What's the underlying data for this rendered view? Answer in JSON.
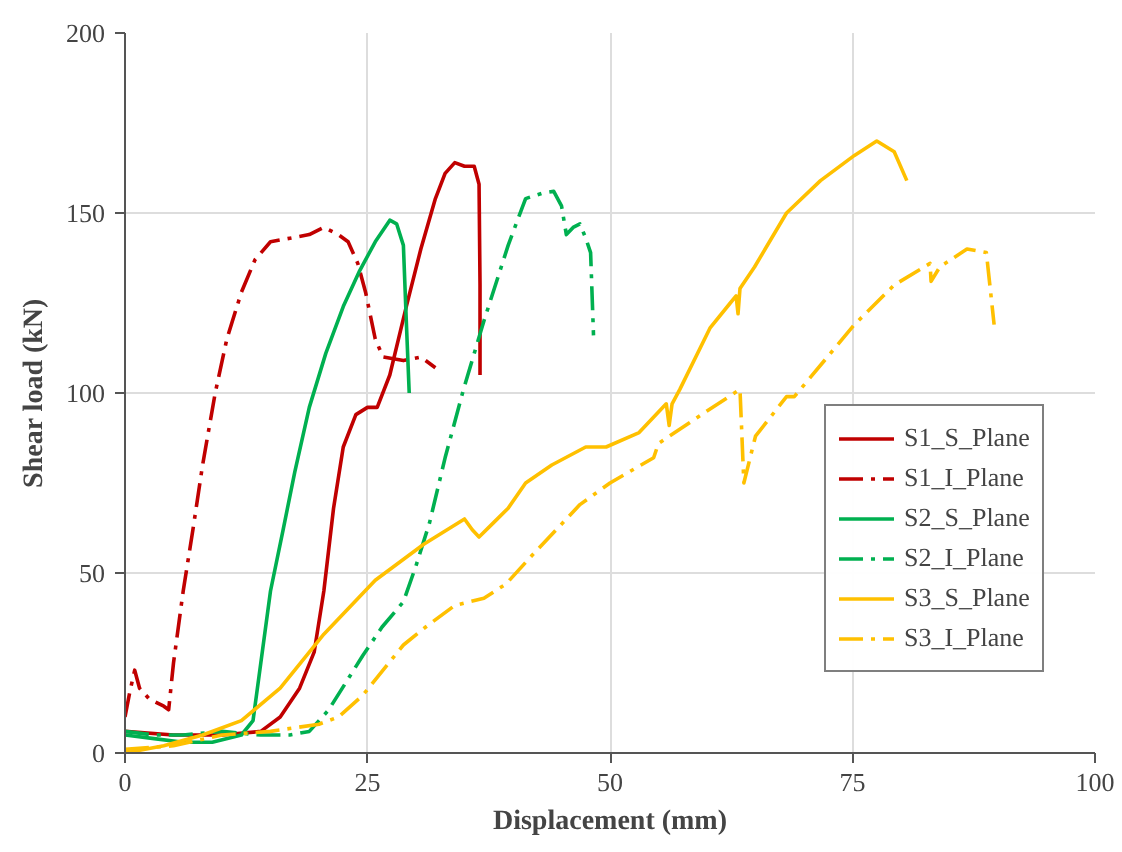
{
  "chart_data": {
    "type": "line",
    "xlabel": "Displacement (mm)",
    "ylabel": "Shear load (kN)",
    "xlim": [
      0,
      100
    ],
    "xticks": [
      0,
      25,
      50,
      75,
      100
    ],
    "ylim": [
      0,
      200
    ],
    "yticks": [
      0,
      50,
      100,
      150,
      200
    ],
    "grid": true,
    "legend": "right",
    "marker": "none",
    "series": [
      {
        "name": "S1_S_Plane",
        "color": "#c00000",
        "line_style": "solid",
        "x": [
          0,
          5,
          10,
          14,
          16,
          18,
          19.5,
          20.5,
          21.5,
          22.5,
          23.8,
          25,
          26,
          27.3,
          29,
          30.5,
          32,
          33,
          34,
          35,
          36,
          36.5,
          36.6,
          36.6
        ],
        "values": [
          6,
          5,
          5,
          6,
          10,
          18,
          28,
          45,
          68,
          85,
          94,
          96,
          96,
          105,
          124,
          140,
          154,
          161,
          164,
          163,
          163,
          158,
          130,
          105
        ]
      },
      {
        "name": "S1_I_Plane",
        "color": "#c00000",
        "line_style": "dashdot",
        "x": [
          0,
          0.5,
          1,
          1.5,
          2.5,
          4,
          4.5,
          5,
          6,
          7,
          8,
          9.3,
          10.5,
          12,
          13.4,
          15,
          17,
          19,
          20.5,
          22,
          23,
          24,
          24.8,
          25.8,
          26.6,
          28.7,
          30.5,
          32
        ],
        "values": [
          10,
          17,
          23,
          18,
          15,
          13,
          12,
          25,
          45,
          62,
          80,
          100,
          115,
          128,
          137,
          142,
          143,
          144,
          146,
          144,
          142,
          136,
          128,
          115,
          110,
          109,
          110,
          107
        ]
      },
      {
        "name": "S2_S_Plane",
        "color": "#00b050",
        "line_style": "solid",
        "x": [
          0,
          3,
          6,
          9,
          12,
          13.2,
          14,
          15,
          16.3,
          17.5,
          19,
          20.7,
          22.5,
          24.2,
          25.8,
          27.3,
          28,
          28.7,
          29,
          29.3
        ],
        "values": [
          5,
          4,
          3,
          3,
          5,
          9,
          25,
          45,
          62,
          78,
          96,
          111,
          124,
          134,
          142,
          148,
          147,
          141,
          120,
          100
        ]
      },
      {
        "name": "S2_I_Plane",
        "color": "#00b050",
        "line_style": "dashdot",
        "x": [
          0,
          3,
          6,
          10,
          14,
          17,
          19,
          21,
          24.5,
          26.5,
          28.7,
          30,
          31.4,
          33,
          34.9,
          37,
          39.5,
          41.3,
          43,
          44.2,
          45,
          45.5,
          46.2,
          46.9,
          47.5,
          48,
          48.3
        ],
        "values": [
          6,
          5,
          5,
          6,
          5,
          5,
          6,
          12,
          27,
          35,
          42,
          52,
          64,
          82,
          101,
          120,
          141,
          154,
          155.5,
          156,
          152,
          144,
          146,
          147,
          143,
          139,
          116
        ]
      },
      {
        "name": "S3_S_Plane",
        "color": "#ffc000",
        "line_style": "solid",
        "x": [
          0,
          4,
          8,
          12,
          16,
          20.5,
          25.8,
          30.8,
          35,
          35.8,
          36.5,
          38,
          39.5,
          41.3,
          44,
          47.5,
          49.6,
          53,
          55.8,
          56.1,
          56.4,
          57.2,
          60.3,
          62.4,
          63,
          63.2,
          63.4,
          64.9,
          68.2,
          71.7,
          75.2,
          77.5,
          79.3,
          80.6
        ],
        "values": [
          0,
          2,
          5,
          9,
          18,
          33,
          48,
          58,
          65,
          62,
          60,
          64,
          68,
          75,
          80,
          85,
          85,
          89,
          97,
          91,
          97,
          101,
          118,
          125,
          127,
          122,
          129,
          135,
          150,
          159,
          166,
          170,
          167,
          159
        ]
      },
      {
        "name": "S3_I_Plane",
        "color": "#ffc000",
        "line_style": "dashdot",
        "x": [
          0,
          5,
          10,
          15,
          20,
          22,
          24.5,
          28.7,
          31,
          34,
          37,
          39.3,
          42,
          46.9,
          50,
          54.5,
          55,
          60,
          63.4,
          63.8,
          65,
          68.2,
          69,
          75.2,
          79.3,
          83,
          83.1,
          84,
          86.8,
          88.8,
          89.6
        ],
        "values": [
          1,
          2,
          5,
          6,
          8,
          10,
          16,
          30,
          35,
          41,
          43,
          47,
          55,
          69,
          75,
          82,
          86,
          95,
          101,
          75,
          88,
          99,
          99,
          119,
          130,
          136,
          131,
          135,
          140,
          139,
          119
        ]
      }
    ]
  }
}
